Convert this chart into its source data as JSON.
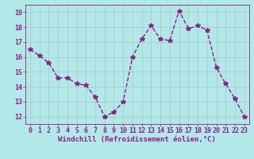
{
  "x": [
    0,
    1,
    2,
    3,
    4,
    5,
    6,
    7,
    8,
    9,
    10,
    11,
    12,
    13,
    14,
    15,
    16,
    17,
    18,
    19,
    20,
    21,
    22,
    23
  ],
  "y": [
    16.5,
    16.1,
    15.6,
    14.6,
    14.6,
    14.2,
    14.1,
    13.3,
    12.0,
    12.3,
    13.0,
    16.0,
    17.2,
    18.1,
    17.2,
    17.1,
    19.1,
    17.9,
    18.1,
    17.8,
    15.3,
    14.2,
    13.2,
    12.0
  ],
  "line_color": "#882288",
  "marker": "*",
  "marker_size": 4,
  "line_width": 1.0,
  "background_color": "#b3e8e8",
  "grid_color": "#aacccc",
  "xlabel": "Windchill (Refroidissement éolien,°C)",
  "ylim": [
    11.5,
    19.5
  ],
  "xlim": [
    -0.5,
    23.5
  ],
  "yticks": [
    12,
    13,
    14,
    15,
    16,
    17,
    18,
    19
  ],
  "xticks": [
    0,
    1,
    2,
    3,
    4,
    5,
    6,
    7,
    8,
    9,
    10,
    11,
    12,
    13,
    14,
    15,
    16,
    17,
    18,
    19,
    20,
    21,
    22,
    23
  ],
  "tick_color": "#882288",
  "label_color": "#882288",
  "xlabel_fontsize": 6.5,
  "tick_fontsize": 6.0
}
